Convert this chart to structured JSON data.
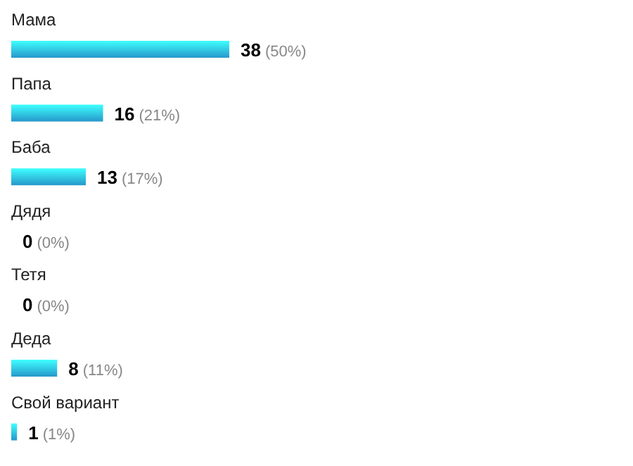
{
  "chart_data": {
    "type": "bar",
    "orientation": "horizontal",
    "categories": [
      "Мама",
      "Папа",
      "Баба",
      "Дядя",
      "Тетя",
      "Деда",
      "Свой вариант"
    ],
    "values": [
      38,
      16,
      13,
      0,
      0,
      8,
      1
    ],
    "color": "#29a9e1",
    "value_labels": [
      "38 (50%)",
      "16 (21%)",
      "13 (17%)",
      "0 (0%)",
      "0 (0%)",
      "8 (11%)",
      "1 (1%)"
    ]
  }
}
